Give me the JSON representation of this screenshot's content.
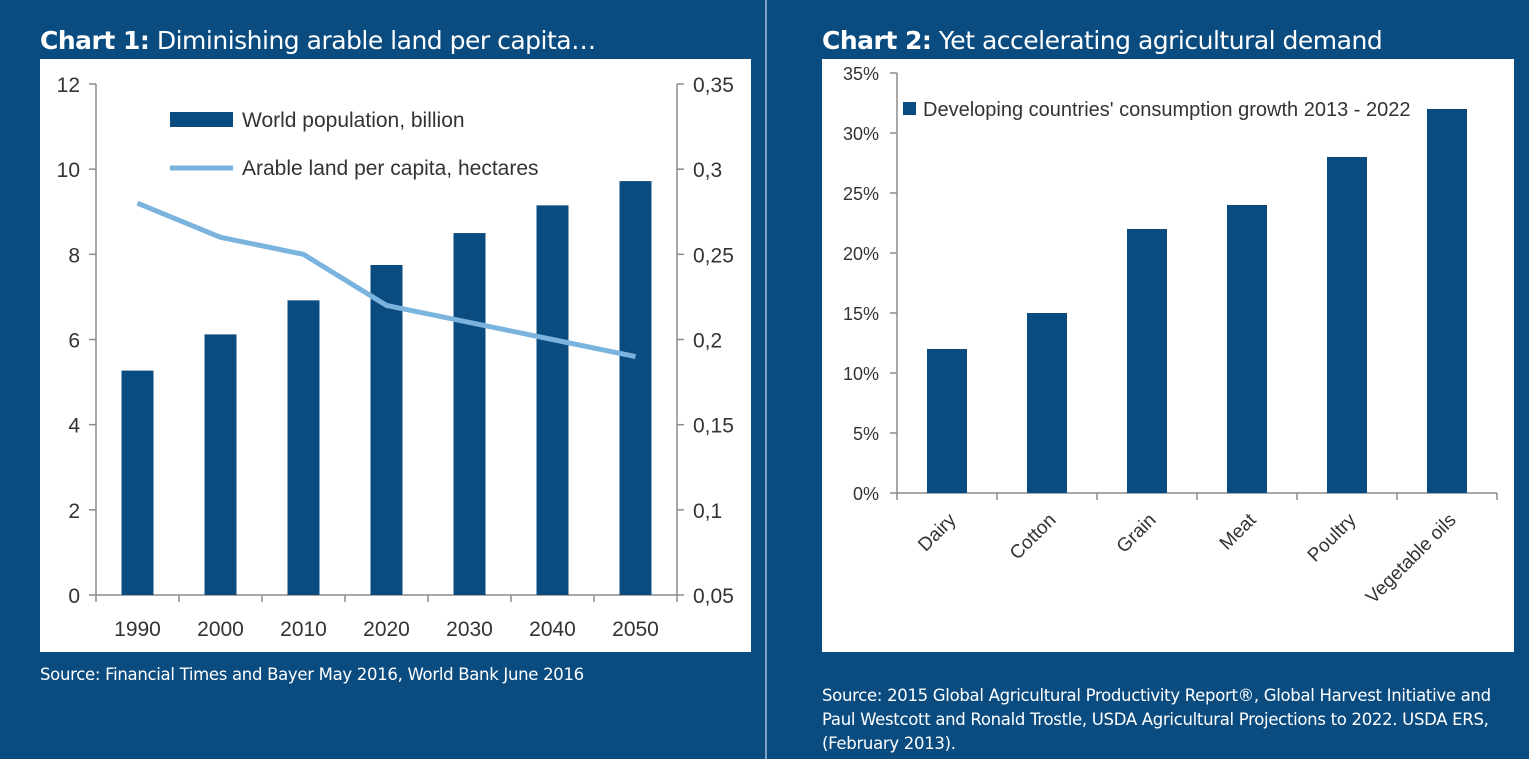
{
  "colors": {
    "background": "#0b4c80",
    "bar": "#0b4c80",
    "line": "#7ab3dd",
    "axis": "#8c8c8c",
    "text": "#333333"
  },
  "chart1": {
    "title_bold": "Chart 1:",
    "title_rest": "Diminishing arable land per capita…",
    "source": "Source: Financial Times and Bayer May 2016, World Bank June 2016"
  },
  "chart2": {
    "title_bold": "Chart 2:",
    "title_rest": "Yet accelerating agricultural demand",
    "source": "Source: 2015 Global Agricultural Productivity Report®, Global Harvest Initiative and Paul Westcott and Ronald Trostle, USDA Agricultural Projections to 2022. USDA ERS, (February 2013)."
  },
  "chart_data": [
    {
      "type": "bar",
      "categories": [
        "1990",
        "2000",
        "2010",
        "2020",
        "2030",
        "2040",
        "2050"
      ],
      "series": [
        {
          "name": "World population, billion",
          "type": "bar",
          "axis": "left",
          "values": [
            5.27,
            6.12,
            6.92,
            7.75,
            8.5,
            9.15,
            9.72
          ]
        },
        {
          "name": "Arable land per capita, hectares",
          "type": "line",
          "axis": "right",
          "values": [
            0.28,
            0.26,
            0.25,
            0.22,
            0.21,
            0.2,
            0.19
          ]
        }
      ],
      "y_left": {
        "ylim": [
          0,
          12
        ],
        "ticks": [
          "0",
          "2",
          "4",
          "6",
          "8",
          "10",
          "12"
        ]
      },
      "y_right": {
        "ylim": [
          0.05,
          0.35
        ],
        "ticks": [
          "0,05",
          "0,1",
          "0,15",
          "0,2",
          "0,25",
          "0,3",
          "0,35"
        ]
      },
      "legend": "top-left",
      "grid": false
    },
    {
      "type": "bar",
      "categories": [
        "Dairy",
        "Cotton",
        "Grain",
        "Meat",
        "Poultry",
        "Vegetable oils"
      ],
      "series": [
        {
          "name": "Developing countries' consumption growth 2013 - 2022",
          "values": [
            12,
            15,
            22,
            24,
            28,
            32
          ]
        }
      ],
      "y": {
        "ylim": [
          0,
          35
        ],
        "unit": "%",
        "ticks": [
          "0%",
          "5%",
          "10%",
          "15%",
          "20%",
          "25%",
          "30%",
          "35%"
        ]
      },
      "legend": "top-left",
      "grid": false
    }
  ]
}
